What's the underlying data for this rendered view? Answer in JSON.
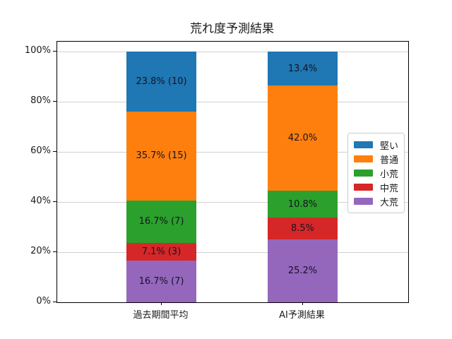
{
  "chart_data": {
    "type": "bar",
    "stacked": true,
    "title": "荒れ度予測結果",
    "categories": [
      "過去期間平均",
      "AI予測結果"
    ],
    "series": [
      {
        "name": "堅い",
        "color": "#1f77b4",
        "values": [
          23.8,
          13.4
        ],
        "bar_labels": [
          "23.8% (10)",
          "13.4%"
        ]
      },
      {
        "name": "普通",
        "color": "#ff7f0e",
        "values": [
          35.7,
          42.0
        ],
        "bar_labels": [
          "35.7% (15)",
          "42.0%"
        ]
      },
      {
        "name": "小荒",
        "color": "#2ca02c",
        "values": [
          16.7,
          10.8
        ],
        "bar_labels": [
          "16.7% (7)",
          "10.8%"
        ]
      },
      {
        "name": "中荒",
        "color": "#d62728",
        "values": [
          7.1,
          8.5
        ],
        "bar_labels": [
          "7.1% (3)",
          "8.5%"
        ]
      },
      {
        "name": "大荒",
        "color": "#9467bd",
        "values": [
          16.7,
          25.2
        ],
        "bar_labels": [
          "16.7% (7)",
          "25.2%"
        ]
      }
    ],
    "stack_order_top_to_bottom": [
      "堅い",
      "普通",
      "小荒",
      "中荒",
      "大荒"
    ],
    "ylim": [
      0,
      100
    ],
    "yticks": [
      0,
      20,
      40,
      60,
      80,
      100
    ],
    "ytick_labels": [
      "0%",
      "20%",
      "40%",
      "60%",
      "80%",
      "100%"
    ],
    "grid": true,
    "legend_position": "center right",
    "legend_entries": [
      "堅い",
      "普通",
      "小荒",
      "中荒",
      "大荒"
    ]
  }
}
